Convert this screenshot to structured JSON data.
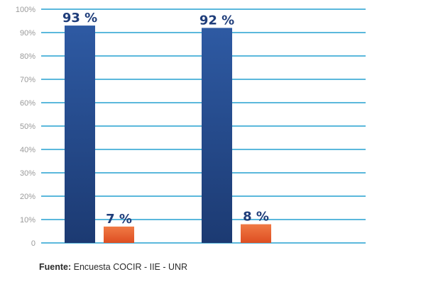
{
  "chart_data": {
    "type": "bar",
    "categories": [
      "",
      ""
    ],
    "series": [
      {
        "values": [
          93,
          92
        ],
        "data_labels": [
          "93 %",
          "92 %"
        ]
      },
      {
        "values": [
          7,
          8
        ],
        "data_labels": [
          "7 %",
          "8 %"
        ]
      }
    ],
    "ylim": [
      0,
      100
    ],
    "yticks": [
      0,
      10,
      20,
      30,
      40,
      50,
      60,
      70,
      80,
      90,
      100
    ],
    "ytick_labels": [
      "0",
      "10%",
      "20%",
      "30%",
      "40%",
      "50%",
      "60%",
      "70%",
      "80%",
      "90%",
      "100%"
    ],
    "grid": true,
    "legend": "none",
    "colors": {
      "series_0_top": "#2e5aa3",
      "series_0_bottom": "#1c3a72",
      "series_1_top": "#f07a45",
      "series_1_bottom": "#de4e22",
      "series_0_label": "#1f3d7a",
      "series_1_label": "#1f3d7a",
      "grid": "#5bb8dc"
    }
  },
  "source": {
    "label": "Fuente:",
    "text": " Encuesta COCIR - IIE - UNR"
  }
}
